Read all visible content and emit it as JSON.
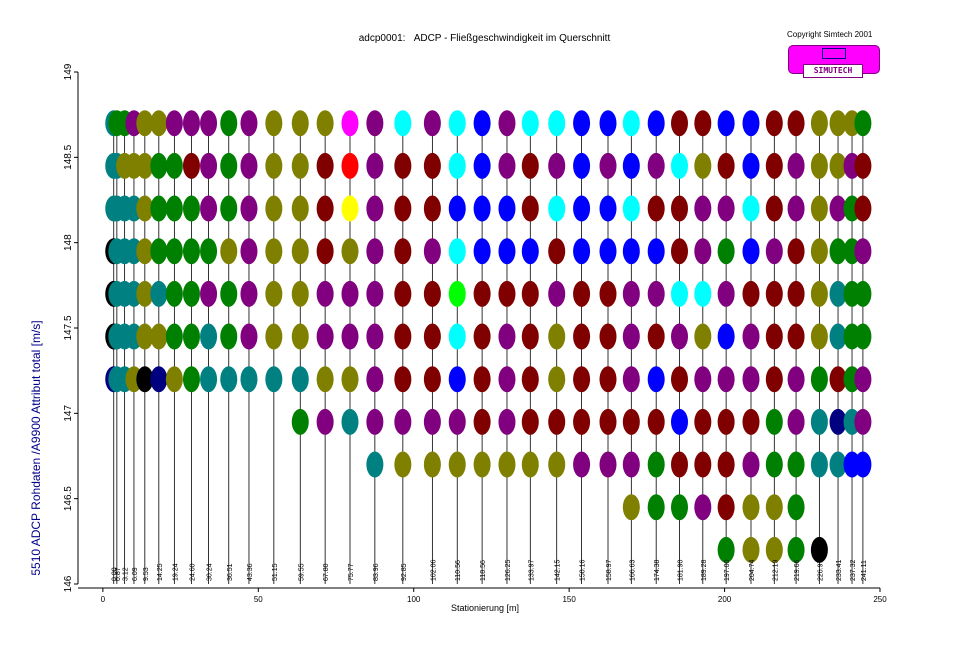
{
  "title": {
    "left": "adcp0001:",
    "right": "ADCP - Fließgeschwindigkeit im Querschnitt"
  },
  "copyright": "Copyright Simtech 2001",
  "logo_text": "SIMUTECH",
  "chart_data": {
    "type": "scatter",
    "title": "adcp0001:  ADCP - Fließgeschwindigkeit im Querschnitt",
    "xlabel": "Stationierung [m]",
    "ylabel": "5510 ADCP Rohdaten  /A9900 Attribut total [m/s]",
    "xlim": [
      -8,
      250
    ],
    "ylim": [
      146,
      149
    ],
    "xticks": [
      0,
      50,
      100,
      150,
      200,
      250
    ],
    "yticks": [
      146,
      146.5,
      147,
      147.5,
      148,
      148.5,
      149
    ],
    "ytick_labels": [
      "146",
      "146.5",
      "147",
      "147.5",
      "148",
      "148.5",
      "149"
    ],
    "station_labels": [
      "0.00",
      "0.87",
      "3.12",
      "6.09",
      "9.53",
      "14.25",
      "19.24",
      "24.60",
      "30.24",
      "36.51",
      "43.36",
      "51.15",
      "59.55",
      "67.80",
      "75.77",
      "83.96",
      "92.85",
      "102.06",
      "110.56",
      "118.56",
      "126.25",
      "133.97",
      "142.15",
      "150.16",
      "158.97",
      "166.63",
      "174.38",
      "181.90",
      "189.28",
      "197.00",
      "204.74",
      "212.19",
      "219.66",
      "226.97",
      "233.41",
      "237.32",
      "241.11"
    ],
    "station_x": [
      3.5,
      4.5,
      7.0,
      10.0,
      13.5,
      18.0,
      23.0,
      28.5,
      34.0,
      40.5,
      47.0,
      55.0,
      63.5,
      71.5,
      79.5,
      87.5,
      96.5,
      106.0,
      114.0,
      122.0,
      130.0,
      137.5,
      146.0,
      154.0,
      162.5,
      170.0,
      178.0,
      185.5,
      193.0,
      200.5,
      208.5,
      216.0,
      223.0,
      230.5,
      236.5,
      241.0,
      244.5
    ],
    "bottom_y": [
      146,
      146,
      146,
      146,
      146,
      146,
      146,
      146,
      146,
      146,
      146,
      146,
      146,
      146,
      146,
      146,
      146,
      146,
      146,
      146,
      146,
      146,
      146,
      146,
      146,
      146,
      146,
      146,
      146,
      146,
      146,
      146,
      146,
      146,
      146,
      146,
      146
    ],
    "depth_levels": [
      148.7,
      148.45,
      148.2,
      147.95,
      147.7,
      147.45,
      147.2,
      146.95,
      146.7,
      146.45,
      146.2
    ],
    "color_key": {
      "A": "#008080",
      "B": "#808000",
      "C": "#800080",
      "D": "#008000",
      "E": "#800000",
      "F": "#0000ff",
      "G": "#00ffff",
      "H": "#000000",
      "I": "#000080",
      "J": "#ff00ff",
      "K": "#ff0000",
      "L": "#ffff00",
      "M": "#00ff00"
    },
    "profiles": [
      "AAAHHHI....",
      "DAAAAAA....",
      "DBAAAAA....",
      "CBAAAAB....",
      "BBBBBBH....",
      "BDDDABI....",
      "CDDDDDB....",
      "CEDDDDD....",
      "CCCDCAA....",
      "DDDBDDA....",
      "CCCCCCA....",
      "BBBBBBA....",
      "BBBBBBAD...",
      "BEEECCBC...",
      "JKLBCCBA...",
      "CCCCCCCCA..",
      "GEEEEEECB..",
      "CEECEEECB..",
      "GGFGMGFCB..",
      "FFFFEEEEB..",
      "CCFFECCCB..",
      "GEEFEEEEB..",
      "GCGECBBEB..",
      "FFFFEEEEC..",
      "FCFFEEEEC..",
      "GFGFCCCECB.",
      "FCEFCEFEDD.",
      "EGEEGCEFED.",
      "EBCCGBCEEC.",
      "FECDCFCEEED",
      "FFGFECCECBB",
      "EEECEEEDDBB",
      "ECCEEECCDDD",
      "BBBBBBDAA.H",
      "BBCDAAEIA..",
      "BCDDDDDAF..",
      "DEECDDCCF.."
    ]
  }
}
